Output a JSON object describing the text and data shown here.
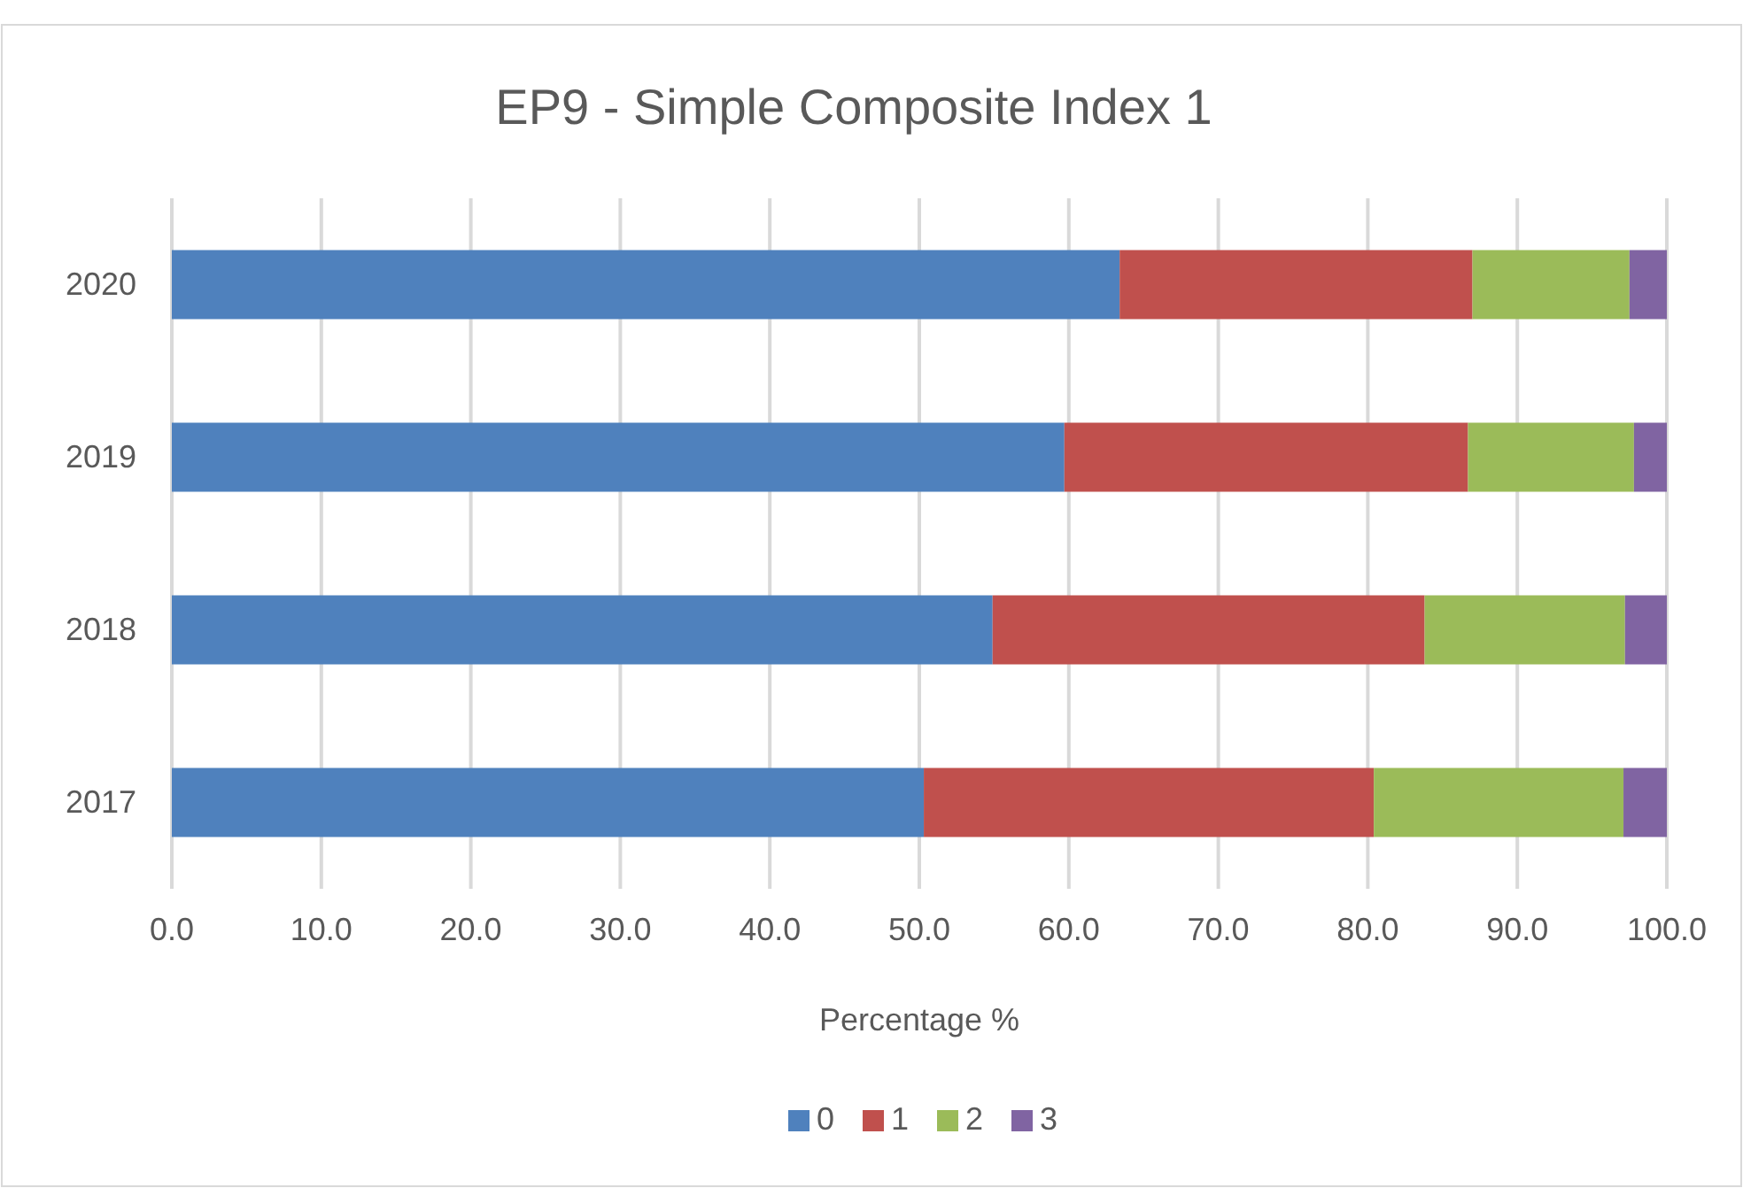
{
  "chart_data": {
    "type": "bar",
    "orientation": "horizontal",
    "stacked": true,
    "title": "EP9 - Simple Composite Index 1",
    "xlabel": "Percentage %",
    "categories": [
      "2020",
      "2019",
      "2018",
      "2017"
    ],
    "series": [
      {
        "name": "0",
        "color": "#4f81bd",
        "values": [
          63.4,
          59.7,
          54.9,
          50.3
        ]
      },
      {
        "name": "1",
        "color": "#c0504d",
        "values": [
          23.6,
          27.0,
          28.9,
          30.1
        ]
      },
      {
        "name": "2",
        "color": "#9bbb59",
        "values": [
          10.5,
          11.1,
          13.4,
          16.7
        ]
      },
      {
        "name": "3",
        "color": "#8064a2",
        "values": [
          2.5,
          2.2,
          2.8,
          2.9
        ]
      }
    ],
    "xlim": [
      0,
      100
    ],
    "xticks": [
      {
        "value": 0,
        "label": "0.0"
      },
      {
        "value": 10,
        "label": "10.0"
      },
      {
        "value": 20,
        "label": "20.0"
      },
      {
        "value": 30,
        "label": "30.0"
      },
      {
        "value": 40,
        "label": "40.0"
      },
      {
        "value": 50,
        "label": "50.0"
      },
      {
        "value": 60,
        "label": "60.0"
      },
      {
        "value": 70,
        "label": "70.0"
      },
      {
        "value": 80,
        "label": "80.0"
      },
      {
        "value": 90,
        "label": "90.0"
      },
      {
        "value": 100,
        "label": "100.0"
      }
    ],
    "grid": "x",
    "legend": "bottom"
  }
}
